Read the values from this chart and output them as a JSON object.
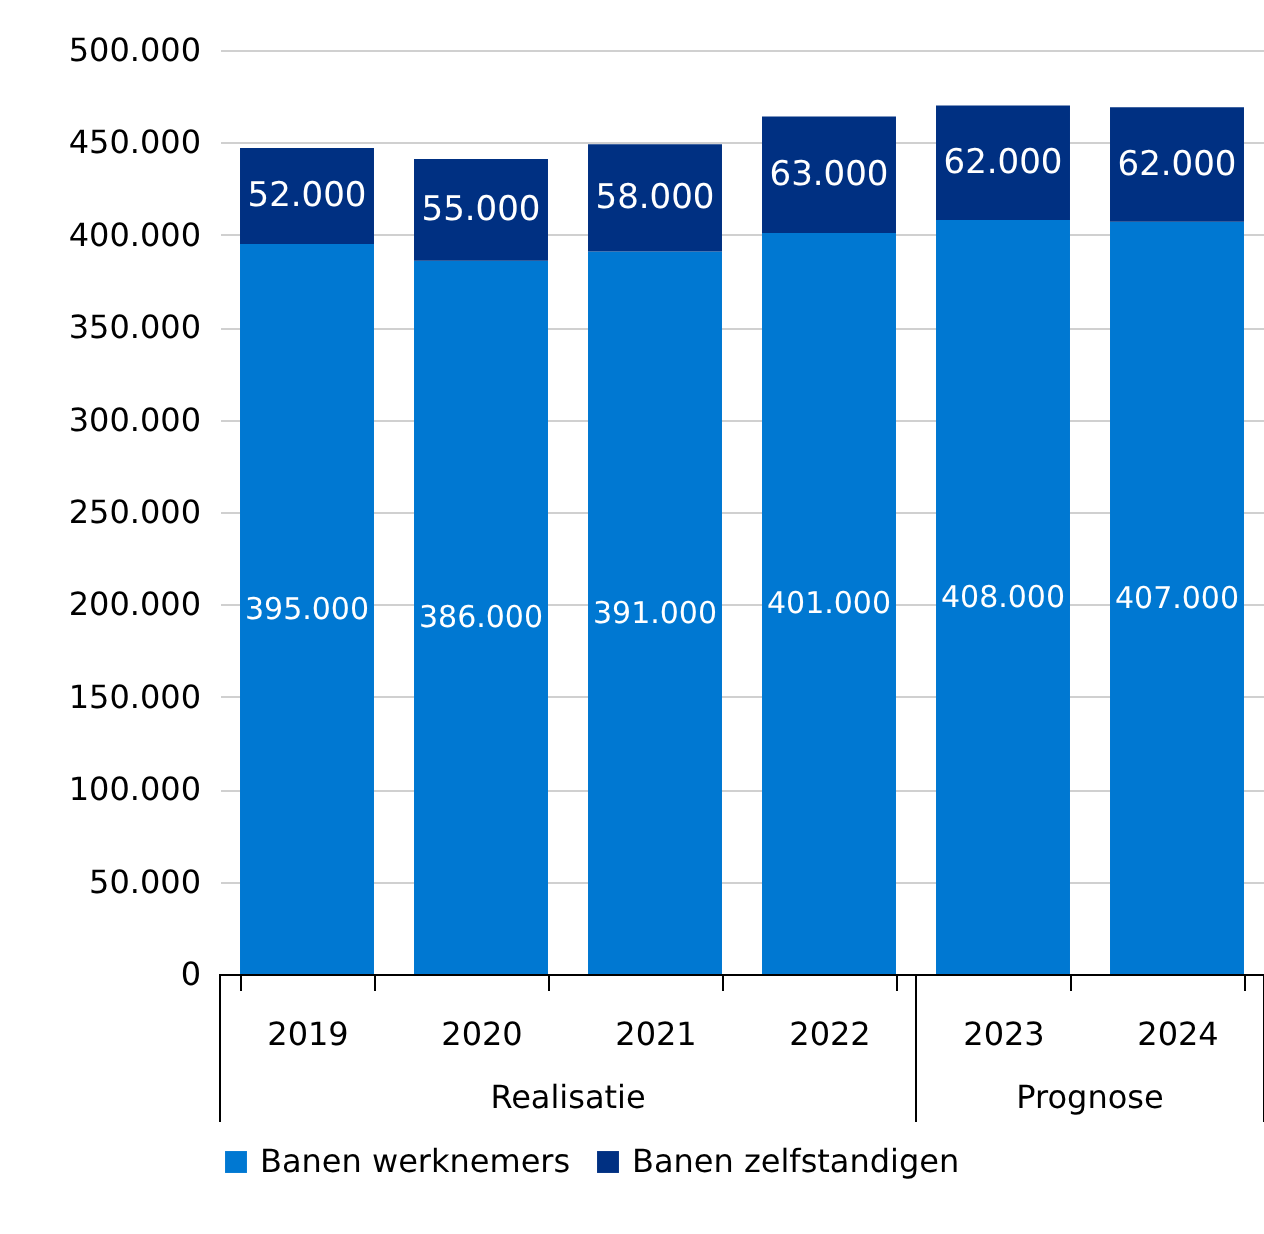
{
  "chart_data": {
    "type": "bar",
    "stacked": true,
    "categories": [
      "2019",
      "2020",
      "2021",
      "2022",
      "2023",
      "2024"
    ],
    "series": [
      {
        "name": "Banen werknemers",
        "color": "#0078d2",
        "values": [
          395000,
          386000,
          391000,
          401000,
          408000,
          407000
        ],
        "value_labels": [
          "395.000",
          "386.000",
          "391.000",
          "401.000",
          "408.000",
          "407.000"
        ]
      },
      {
        "name": "Banen zelfstandigen",
        "color": "#003082",
        "values": [
          52000,
          55000,
          58000,
          63000,
          62000,
          62000
        ],
        "value_labels": [
          "52.000",
          "55.000",
          "58.000",
          "63.000",
          "62.000",
          "62.000"
        ]
      }
    ],
    "ylim": [
      0,
      500000
    ],
    "yticks": [
      0,
      {
        "value": 50000,
        "label": "50.000"
      },
      {
        "value": 100000,
        "label": "100.000"
      },
      {
        "value": 150000,
        "label": "150.000"
      },
      {
        "value": 200000,
        "label": "200.000"
      },
      {
        "value": 250000,
        "label": "250.000"
      },
      {
        "value": 300000,
        "label": "300.000"
      },
      {
        "value": 350000,
        "label": "350.000"
      },
      {
        "value": 400000,
        "label": "400.000"
      },
      {
        "value": 450000,
        "label": "450.000"
      },
      {
        "value": 500000,
        "label": "500.000"
      }
    ],
    "grid": "y",
    "legend": "bottom",
    "annotations": [
      "Realisatie",
      "Prognose"
    ]
  }
}
